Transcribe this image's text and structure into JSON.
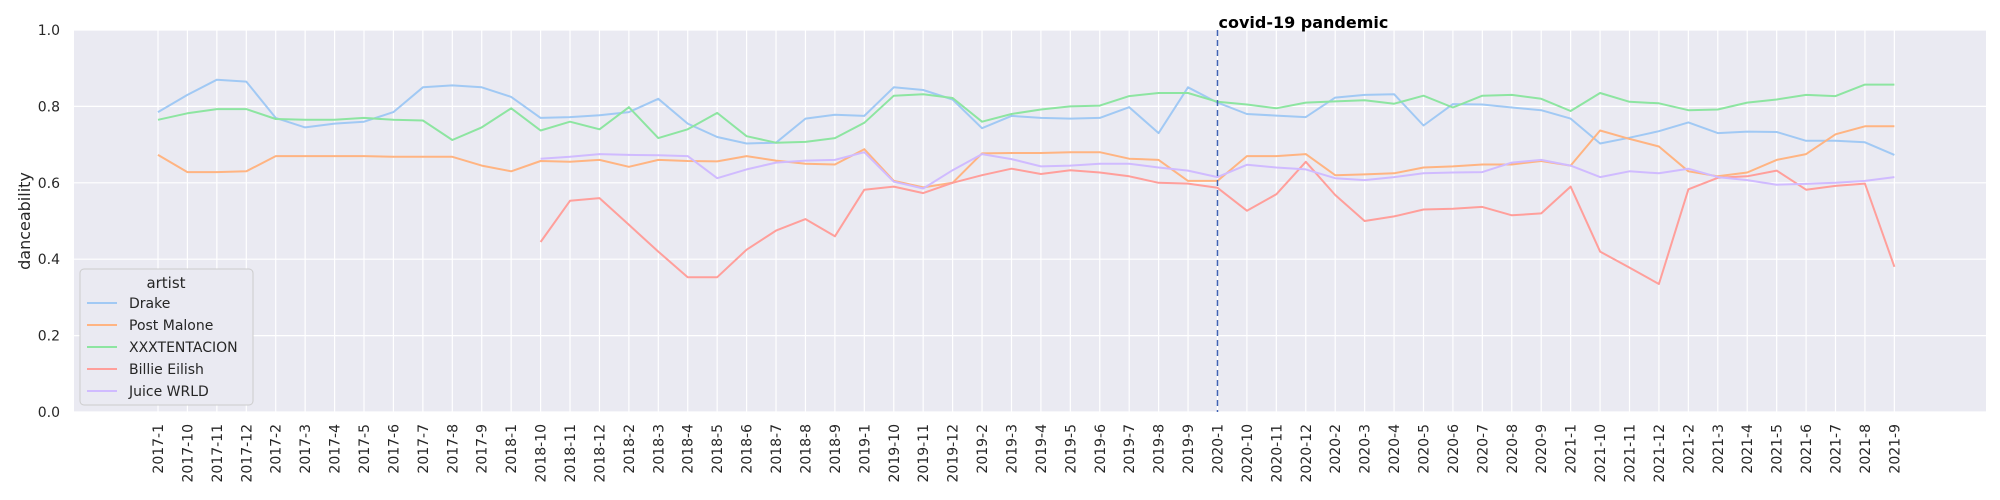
{
  "chart_data": {
    "type": "line",
    "xlabel": "",
    "ylabel": "danceability",
    "ylim": [
      0,
      1.0
    ],
    "yticks": [
      "0.0",
      "0.2",
      "0.4",
      "0.6",
      "0.8",
      "1.0"
    ],
    "grid": true,
    "legend_title": "artist",
    "legend_position": "lower-left",
    "categories": [
      "2017-1",
      "2017-10",
      "2017-11",
      "2017-12",
      "2017-2",
      "2017-3",
      "2017-4",
      "2017-5",
      "2017-6",
      "2017-7",
      "2017-8",
      "2017-9",
      "2018-1",
      "2018-10",
      "2018-11",
      "2018-12",
      "2018-2",
      "2018-3",
      "2018-4",
      "2018-5",
      "2018-6",
      "2018-7",
      "2018-8",
      "2018-9",
      "2019-1",
      "2019-10",
      "2019-11",
      "2019-12",
      "2019-2",
      "2019-3",
      "2019-4",
      "2019-5",
      "2019-6",
      "2019-7",
      "2019-8",
      "2019-9",
      "2020-1",
      "2020-10",
      "2020-11",
      "2020-12",
      "2020-2",
      "2020-3",
      "2020-4",
      "2020-5",
      "2020-6",
      "2020-7",
      "2020-8",
      "2020-9",
      "2021-1",
      "2021-10",
      "2021-11",
      "2021-12",
      "2021-2",
      "2021-3",
      "2021-4",
      "2021-5",
      "2021-6",
      "2021-7",
      "2021-8",
      "2021-9"
    ],
    "annotation": {
      "label": "covid-19 pandemic",
      "x": "2020-1"
    },
    "series": [
      {
        "name": "Drake",
        "color": "#a1c9f4",
        "values": [
          0.785,
          0.83,
          0.87,
          0.865,
          0.77,
          0.745,
          0.755,
          0.76,
          0.785,
          0.85,
          0.855,
          0.85,
          0.825,
          0.77,
          0.772,
          0.777,
          0.785,
          0.82,
          0.755,
          0.72,
          0.703,
          0.705,
          0.768,
          0.778,
          0.775,
          0.85,
          0.843,
          0.818,
          0.743,
          0.775,
          0.77,
          0.768,
          0.77,
          0.798,
          0.73,
          0.85,
          0.81,
          0.78,
          0.776,
          0.772,
          0.823,
          0.83,
          0.832,
          0.75,
          0.806,
          0.805,
          0.797,
          0.79,
          0.768,
          0.703,
          0.718,
          0.735,
          0.758,
          0.73,
          0.734,
          0.733,
          0.71,
          0.71,
          0.706,
          0.673
        ]
      },
      {
        "name": "Post Malone",
        "color": "#ffb482",
        "values": [
          0.673,
          0.628,
          0.628,
          0.63,
          0.67,
          0.67,
          0.67,
          0.67,
          0.668,
          0.668,
          0.668,
          0.645,
          0.63,
          0.657,
          0.655,
          0.66,
          0.642,
          0.66,
          0.657,
          0.656,
          0.67,
          0.658,
          0.65,
          0.648,
          0.688,
          0.605,
          0.588,
          0.6,
          0.677,
          0.678,
          0.678,
          0.68,
          0.68,
          0.663,
          0.66,
          0.605,
          0.605,
          0.67,
          0.67,
          0.675,
          0.62,
          0.622,
          0.625,
          0.64,
          0.643,
          0.648,
          0.648,
          0.657,
          0.645,
          0.737,
          0.715,
          0.695,
          0.63,
          0.617,
          0.627,
          0.66,
          0.675,
          0.727,
          0.748,
          0.748
        ]
      },
      {
        "name": "XXXTENTACION",
        "color": "#8de5a1",
        "values": [
          0.765,
          0.782,
          0.793,
          0.793,
          0.767,
          0.765,
          0.765,
          0.77,
          0.765,
          0.763,
          0.712,
          0.745,
          0.795,
          0.737,
          0.76,
          0.74,
          0.798,
          0.717,
          0.74,
          0.783,
          0.722,
          0.705,
          0.707,
          0.717,
          0.757,
          0.828,
          0.832,
          0.822,
          0.76,
          0.78,
          0.792,
          0.8,
          0.802,
          0.827,
          0.835,
          0.835,
          0.812,
          0.805,
          0.795,
          0.81,
          0.813,
          0.816,
          0.807,
          0.828,
          0.797,
          0.828,
          0.83,
          0.82,
          0.788,
          0.835,
          0.812,
          0.808,
          0.79,
          0.792,
          0.81,
          0.818,
          0.83,
          0.827,
          0.857,
          0.857
        ]
      },
      {
        "name": "Billie Eilish",
        "color": "#ff9f9b",
        "values": [
          null,
          null,
          null,
          null,
          null,
          null,
          null,
          null,
          null,
          null,
          null,
          null,
          null,
          0.445,
          0.553,
          0.56,
          0.49,
          0.42,
          0.353,
          0.353,
          0.425,
          0.475,
          0.505,
          0.46,
          0.582,
          0.59,
          0.573,
          0.6,
          0.62,
          0.637,
          0.623,
          0.633,
          0.627,
          0.617,
          0.6,
          0.598,
          0.587,
          0.527,
          0.57,
          0.655,
          0.568,
          0.5,
          0.512,
          0.53,
          0.532,
          0.537,
          0.515,
          0.52,
          0.59,
          0.42,
          0.378,
          0.335,
          0.583,
          0.613,
          0.617,
          0.632,
          0.582,
          0.592,
          0.598,
          0.38
        ]
      },
      {
        "name": "Juice WRLD",
        "color": "#d0bbff",
        "values": [
          null,
          null,
          null,
          null,
          null,
          null,
          null,
          null,
          null,
          null,
          null,
          null,
          null,
          0.663,
          0.668,
          0.675,
          0.673,
          0.672,
          0.67,
          0.612,
          0.635,
          0.653,
          0.658,
          0.66,
          0.68,
          0.603,
          0.585,
          0.633,
          0.675,
          0.662,
          0.643,
          0.645,
          0.65,
          0.65,
          0.64,
          0.632,
          0.615,
          0.647,
          0.64,
          0.635,
          0.612,
          0.607,
          0.615,
          0.625,
          0.627,
          0.628,
          0.653,
          0.66,
          0.645,
          0.615,
          0.63,
          0.625,
          0.637,
          0.615,
          0.607,
          0.595,
          0.597,
          0.6,
          0.605,
          0.615
        ]
      }
    ]
  }
}
